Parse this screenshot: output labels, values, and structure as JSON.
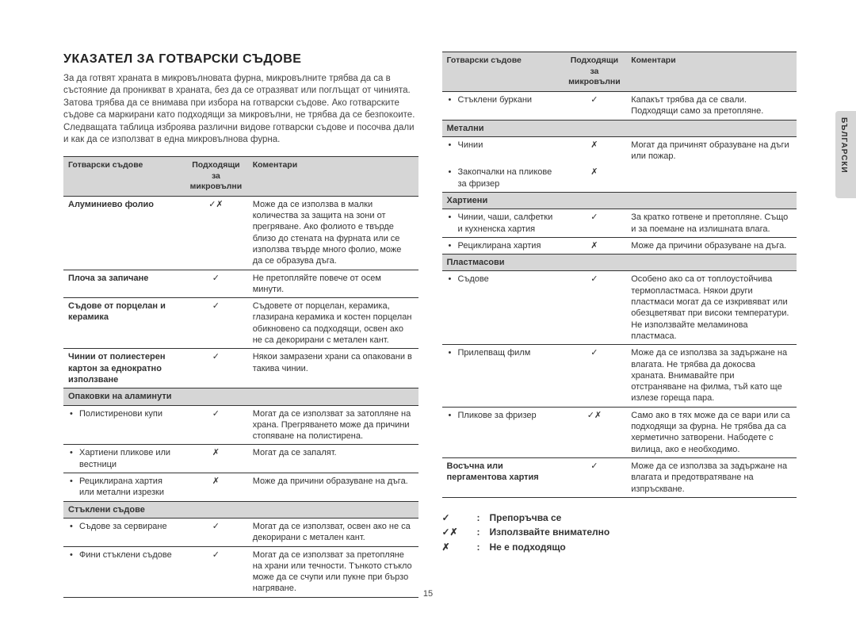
{
  "title": "УКАЗАТЕЛ ЗА ГОТВАРСКИ СЪДОВЕ",
  "intro": "За да готвят храната в микровълновата фурна, микровълните трябва да са в състояние да проникват в храната, без да се отразяват или поглъщат от чинията. Затова трябва да се внимава при избора на готварски съдове. Ако готварските съдове са маркирани като подходящи за микровълни, не трябва да се безпокоите. Следващата таблица изброява различни видове готварски съдове и посочва дали и как да се използват в една микровълнова фурна.",
  "headers": {
    "c1": "Готварски съдове",
    "c2": "Подходящи за микровълни",
    "c3": "Коментари"
  },
  "symbols": {
    "ok": "✓",
    "no": "✗",
    "okno": "✓✗"
  },
  "left_rows": [
    {
      "c1": "Алуминиево фолио",
      "bold": true,
      "c2": "okno",
      "c3": "Може да се използва в малки количества за защита на зони от прегряване. Ако фолиото е твърде близо до стената на фурната или се използва твърде много фолио, може да се образува дъга."
    },
    {
      "c1": "Плоча за запичане",
      "bold": true,
      "c2": "ok",
      "c3": "Не претопляйте повече от осем минути."
    },
    {
      "c1": "Съдове от порцелан и керамика",
      "bold": true,
      "c2": "ok",
      "c3": "Съдовете от порцелан, керамика, глазирана керамика и костен порцелан обикновено са подходящи, освен ако не са декорирани с метален кант."
    },
    {
      "c1": "Чинии от полиестерен картон за еднократно използване",
      "bold": true,
      "c2": "ok",
      "c3": "Някои замразени храни са опаковани в такива чинии."
    },
    {
      "subhead": true,
      "c1": "Опаковки на аламинути"
    },
    {
      "c1": "Полистиренови купи",
      "bullet": true,
      "c2": "ok",
      "c3": "Могат да се използват за затопляне на храна. Прегряването може да причини стопяване на полистирена."
    },
    {
      "c1": "Хартиени пликове или вестници",
      "bullet": true,
      "c2": "no",
      "c3": "Могат да се запалят."
    },
    {
      "c1": "Рециклирана хартия или метални изрезки",
      "bullet": true,
      "c2": "no",
      "c3": "Може да причини образуване на дъга."
    },
    {
      "subhead": true,
      "c1": "Стъклени съдове"
    },
    {
      "c1": "Съдове за сервиране",
      "bullet": true,
      "c2": "ok",
      "c3": "Могат да се използват, освен ако не са декорирани с метален кант."
    },
    {
      "c1": "Фини стъклени съдове",
      "bullet": true,
      "c2": "ok",
      "c3": "Могат да се използват за претопляне на храни или течности. Тънкото стъкло може да се счупи или пукне при бързо нагряване."
    }
  ],
  "right_rows": [
    {
      "c1": "Стъклени буркани",
      "bullet": true,
      "c2": "ok",
      "c3": "Капакът трябва да се свали. Подходящи само за претопляне."
    },
    {
      "subhead": true,
      "c1": "Метални"
    },
    {
      "c1": "Чинии",
      "bullet": true,
      "c2": "no",
      "c3": "Могат да причинят образуване на дъги или пожар.",
      "nobreak": true
    },
    {
      "c1": "Закопчалки на пликове за фризер",
      "bullet": true,
      "c2": "no",
      "c3": ""
    },
    {
      "subhead": true,
      "c1": "Хартиени"
    },
    {
      "c1": "Чинии, чаши, салфетки и кухненска хартия",
      "bullet": true,
      "c2": "ok",
      "c3": "За кратко готвене и претопляне. Също и за поемане на излишната влага."
    },
    {
      "c1": "Рециклирана хартия",
      "bullet": true,
      "c2": "no",
      "c3": "Може да причини образуване на дъга."
    },
    {
      "subhead": true,
      "c1": "Пластмасови"
    },
    {
      "c1": "Съдове",
      "bullet": true,
      "c2": "ok",
      "c3": "Особено ако са от топлоустойчива термопластмаса. Някои други пластмаси могат да се изкривяват или обезцветяват при високи температури. Не използвайте меламинова пластмаса."
    },
    {
      "c1": "Прилепващ филм",
      "bullet": true,
      "c2": "ok",
      "c3": "Може да се използва за задържане на влагата. Не трябва да докосва храната. Внимавайте при отстраняване на филма, тъй като ще излезе гореща пара."
    },
    {
      "c1": "Пликове за фризер",
      "bullet": true,
      "c2": "okno",
      "c3": "Само ако в тях може да се вари или са подходящи за фурна. Не трябва да са херметично затворени. Набодете с вилица, ако е необходимо."
    },
    {
      "c1": "Восъчна или пергаментова хартия",
      "bold": true,
      "c2": "ok",
      "c3": "Може да се използва за задържане на влагата и предотвратяване на изпръскване."
    }
  ],
  "legend": [
    {
      "sym": "ok",
      "text": "Препоръчва се"
    },
    {
      "sym": "okno",
      "text": "Използвайте внимателно"
    },
    {
      "sym": "no",
      "text": "Не е подходящо"
    }
  ],
  "page_number": "15",
  "side_tab": "БЪЛГАРСКИ"
}
